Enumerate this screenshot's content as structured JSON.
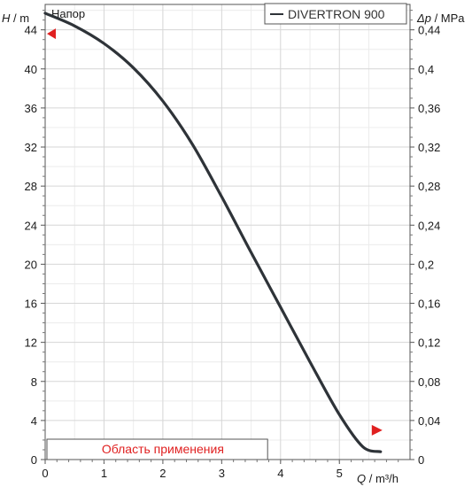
{
  "chart_data": {
    "type": "line",
    "title": "Напор",
    "legend": "DIVERTRON 900",
    "xlabel": {
      "symbol": "Q",
      "unit": " / m³/h"
    },
    "ylabel_left": {
      "symbol": "H",
      "unit": " / m"
    },
    "ylabel_right": {
      "symbol": "Δp",
      "unit": " / MPa"
    },
    "x_ticks": [
      0,
      1,
      2,
      3,
      4,
      5
    ],
    "x_tick_labels": [
      "0",
      "1",
      "2",
      "3",
      "4",
      "5"
    ],
    "xlim": [
      0,
      6.2
    ],
    "y_ticks": [
      0,
      4,
      8,
      12,
      16,
      20,
      24,
      28,
      32,
      36,
      40,
      44
    ],
    "y_tick_labels": [
      "0",
      "4",
      "8",
      "12",
      "16",
      "20",
      "24",
      "28",
      "32",
      "36",
      "40",
      "44"
    ],
    "ylim": [
      0,
      46.6
    ],
    "y2_tick_labels": [
      "0",
      "0,04",
      "0,08",
      "0,12",
      "0,16",
      "0,2",
      "0,24",
      "0,28",
      "0,32",
      "0,36",
      "0,4",
      "0,44"
    ],
    "grid": true,
    "series": [
      {
        "name": "DIVERTRON 900",
        "color": "#2e3338",
        "x": [
          0,
          0.5,
          1.0,
          1.5,
          2.0,
          2.5,
          3.0,
          3.5,
          4.0,
          4.5,
          5.0,
          5.4,
          5.7
        ],
        "y": [
          45.7,
          44.4,
          42.6,
          40.1,
          36.7,
          32.3,
          26.9,
          21.2,
          15.6,
          10.0,
          4.6,
          1.3,
          0.8
        ]
      }
    ],
    "markers": {
      "left_H": 43.6,
      "right_H": 3.0,
      "range_start": 0.3,
      "range_end": 3.7
    },
    "range_label": "Область применения",
    "colors": {
      "accent": "#e02020",
      "grid": "#d6d6d6",
      "curve": "#2e3338"
    }
  }
}
